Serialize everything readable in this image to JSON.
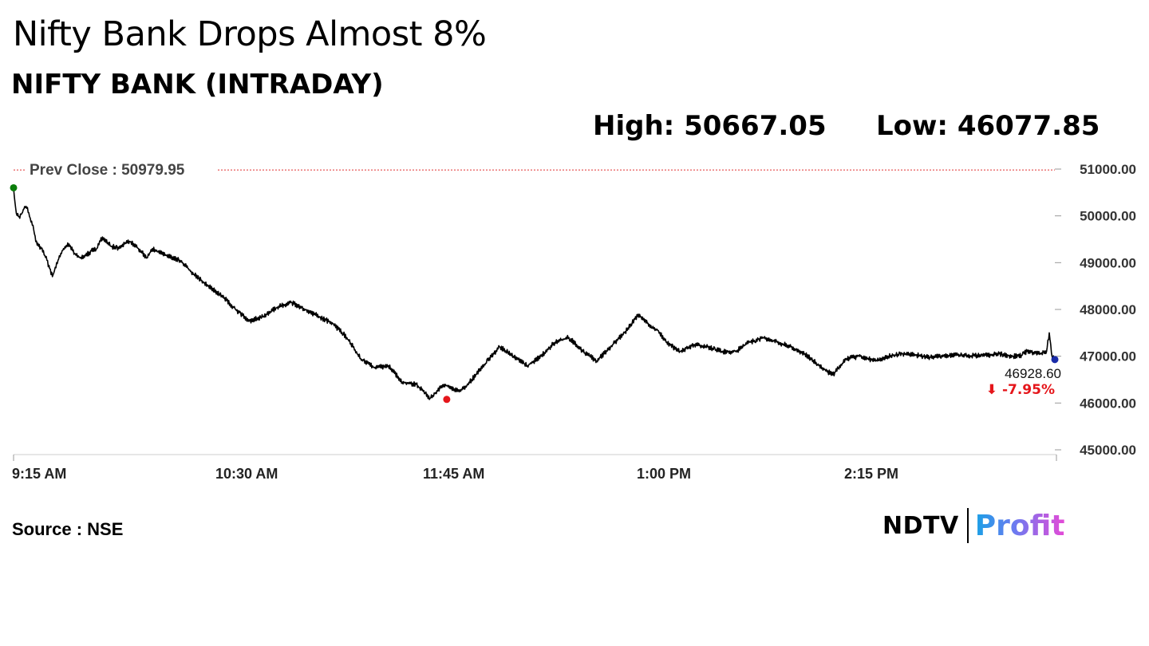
{
  "headline": "Nifty Bank Drops Almost 8%",
  "subtitle": "NIFTY BANK (INTRADAY)",
  "stats": {
    "high": "High: 50667.05",
    "low": "Low: 46077.85"
  },
  "source": "Source : NSE",
  "brand": {
    "left": "NDTV",
    "right": "Profit"
  },
  "chart_data": {
    "type": "line",
    "x_ticks": [
      "9:15 AM",
      "10:30 AM",
      "11:45 AM",
      "1:00 PM",
      "2:15 PM"
    ],
    "y_ticks": [
      "51000.00",
      "50000.00",
      "49000.00",
      "48000.00",
      "47000.00",
      "46000.00",
      "45000.00"
    ],
    "ylim": [
      44900,
      51200
    ],
    "xlim": [
      0,
      375
    ],
    "prev_close": {
      "label": "Prev Close : 50979.95",
      "value": 50979.95
    },
    "last": {
      "label": "46928.60",
      "change": "⬇ -7.95%"
    },
    "grid": false,
    "colors": {
      "line": "#000000",
      "prev_close": "#e03131",
      "open_marker": "#0a7d0a",
      "low_marker": "#e5161b",
      "last_marker": "#1a2ba8",
      "change": "#e5161b"
    },
    "series": [
      {
        "x": [
          0,
          0.5,
          1,
          2,
          3,
          4,
          5,
          6,
          7,
          8,
          10,
          12,
          14,
          16,
          18,
          20,
          22,
          24,
          26,
          28,
          30,
          32,
          35,
          38,
          40,
          42,
          45,
          48,
          50,
          55,
          60,
          65,
          70,
          75,
          80,
          85,
          90,
          95,
          100,
          105,
          110,
          115,
          120,
          125,
          130,
          135,
          140,
          145,
          150,
          155,
          160,
          162,
          165,
          170,
          175,
          180,
          185,
          190,
          195,
          200,
          205,
          210,
          215,
          220,
          225,
          230,
          232,
          235,
          240,
          245,
          250,
          255,
          260,
          265,
          270,
          275,
          280,
          285,
          290,
          295,
          300,
          305,
          310,
          315,
          320,
          325,
          330,
          335,
          340,
          345,
          350,
          355,
          360,
          363,
          365,
          370,
          372,
          373,
          374,
          375
        ],
        "y": [
          50600,
          50300,
          50050,
          49980,
          50050,
          50200,
          50180,
          49950,
          49800,
          49450,
          49300,
          49050,
          48700,
          49050,
          49300,
          49400,
          49200,
          49100,
          49150,
          49250,
          49300,
          49550,
          49350,
          49300,
          49400,
          49450,
          49300,
          49100,
          49300,
          49150,
          49050,
          48750,
          48500,
          48300,
          48000,
          47750,
          47850,
          48050,
          48150,
          48000,
          47850,
          47700,
          47400,
          46950,
          46750,
          46800,
          46450,
          46400,
          46100,
          46400,
          46250,
          46300,
          46500,
          46850,
          47200,
          47000,
          46800,
          47000,
          47300,
          47400,
          47100,
          46900,
          47200,
          47500,
          47900,
          47600,
          47550,
          47300,
          47100,
          47250,
          47200,
          47100,
          47100,
          47300,
          47400,
          47300,
          47200,
          47050,
          46800,
          46600,
          46950,
          47000,
          46900,
          47000,
          47050,
          47020,
          46980,
          47000,
          47020,
          47010,
          47020,
          47050,
          47000,
          47020,
          47100,
          47050,
          47100,
          47500,
          47000,
          46928.6
        ]
      }
    ],
    "markers": {
      "low": {
        "x": 156,
        "y": 46077.85
      }
    }
  }
}
